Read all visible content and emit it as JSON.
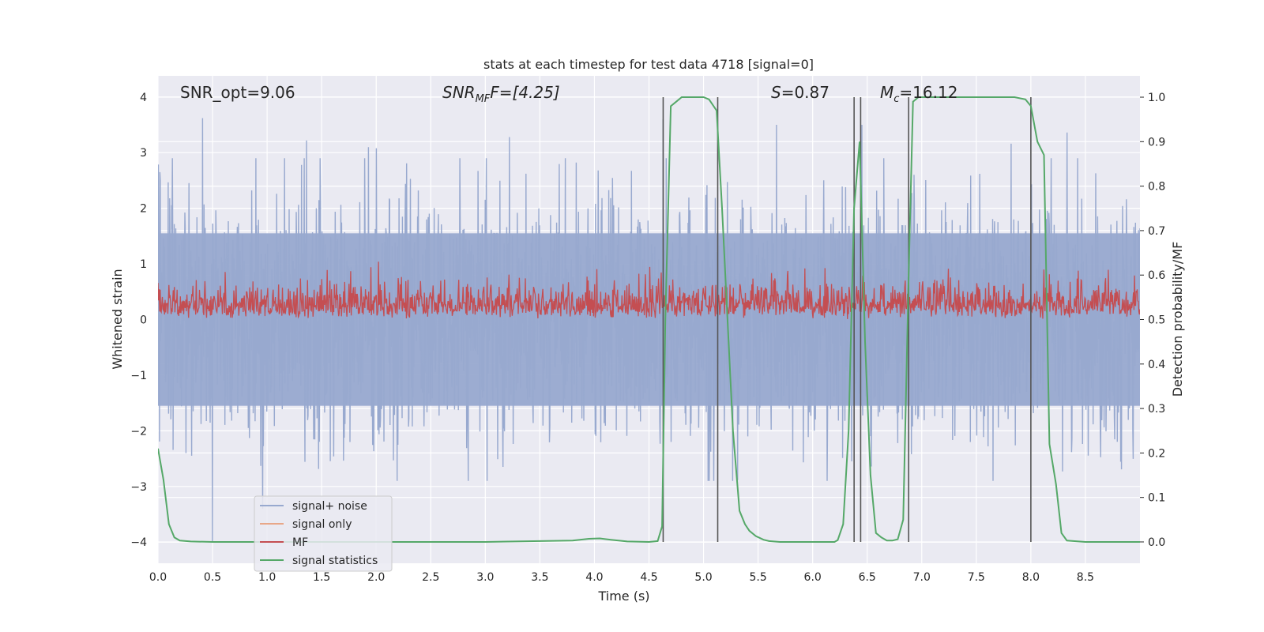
{
  "chart_data": {
    "type": "line",
    "title": "stats at each timestep for test data 4718 [signal=0]",
    "xlabel": "Time (s)",
    "ylabel": "Whitened strain",
    "y2label": "Detection probability/MF",
    "xlim": [
      0.0,
      9.0
    ],
    "ylim": [
      -4.38,
      4.38
    ],
    "y2lim": [
      -0.048,
      1.048
    ],
    "xticks": [
      "0.0",
      "0.5",
      "1.0",
      "1.5",
      "2.0",
      "2.5",
      "3.0",
      "3.5",
      "4.0",
      "4.5",
      "5.0",
      "5.5",
      "6.0",
      "6.5",
      "7.0",
      "7.5",
      "8.0",
      "8.5"
    ],
    "yticks": [
      "−4",
      "−3",
      "−2",
      "−1",
      "0",
      "1",
      "2",
      "3",
      "4"
    ],
    "y2ticks": [
      "0.0",
      "0.1",
      "0.2",
      "0.3",
      "0.4",
      "0.5",
      "0.6",
      "0.7",
      "0.8",
      "0.9",
      "1.0"
    ],
    "annotations": {
      "snr_opt": "SNR_opt=9.06",
      "snr_mf_main": "SNR",
      "snr_mf_sub": "MF",
      "snr_mf_rest": "F=[4.25]",
      "s_sym": "S",
      "s_rest": "=0.87",
      "mc_main": "M",
      "mc_sub": "c",
      "mc_rest": "=16.12"
    },
    "vertical_lines": [
      4.63,
      5.13,
      6.38,
      6.44,
      6.88,
      8.0
    ],
    "series": [
      {
        "name": "signal+ noise",
        "axis": "left",
        "color": "#98a9cf",
        "style": "noise band, amplitude envelope ~ ±1.6 typical, spikes to ±3.6",
        "peaks": [
          [
            0.02,
            2.5
          ],
          [
            0.41,
            3.62
          ],
          [
            0.5,
            -4.0
          ],
          [
            0.96,
            -3.4
          ],
          [
            1.36,
            3.22
          ],
          [
            1.93,
            3.1
          ],
          [
            2.0,
            3.08
          ],
          [
            3.22,
            3.28
          ],
          [
            4.63,
            3.6
          ],
          [
            5.67,
            3.5
          ],
          [
            6.45,
            3.5
          ],
          [
            7.82,
            3.16
          ],
          [
            8.33,
            3.36
          ]
        ]
      },
      {
        "name": "signal only",
        "axis": "left",
        "color": "#e8a788",
        "values": []
      },
      {
        "name": "MF",
        "axis": "right",
        "color": "#c44e52",
        "style": "noisy trace between 0.50 and ~0.62"
      },
      {
        "name": "signal statistics",
        "axis": "right",
        "color": "#55a868",
        "x": [
          0.0,
          0.05,
          0.1,
          0.15,
          0.2,
          0.3,
          0.5,
          1.0,
          2.0,
          3.0,
          3.8,
          3.95,
          4.05,
          4.15,
          4.3,
          4.5,
          4.58,
          4.62,
          4.65,
          4.7,
          4.75,
          4.8,
          4.9,
          5.0,
          5.05,
          5.12,
          5.17,
          5.22,
          5.27,
          5.33,
          5.38,
          5.42,
          5.48,
          5.55,
          5.6,
          5.7,
          6.2,
          6.23,
          6.28,
          6.33,
          6.38,
          6.43,
          6.48,
          6.53,
          6.58,
          6.63,
          6.68,
          6.73,
          6.78,
          6.83,
          6.88,
          6.92,
          6.97,
          7.05,
          7.3,
          7.6,
          7.85,
          7.95,
          8.0,
          8.06,
          8.12,
          8.17,
          8.23,
          8.28,
          8.33,
          8.5,
          9.0
        ],
        "y": [
          0.21,
          0.14,
          0.04,
          0.01,
          0.003,
          0.001,
          0.0,
          0.0,
          0.0,
          0.0,
          0.003,
          0.007,
          0.008,
          0.005,
          0.001,
          0.0,
          0.002,
          0.035,
          0.5,
          0.98,
          0.99,
          1.0,
          1.0,
          1.0,
          0.995,
          0.97,
          0.75,
          0.5,
          0.25,
          0.07,
          0.04,
          0.025,
          0.013,
          0.005,
          0.002,
          0.0,
          0.0,
          0.004,
          0.04,
          0.25,
          0.75,
          0.9,
          0.45,
          0.15,
          0.02,
          0.01,
          0.003,
          0.003,
          0.006,
          0.05,
          0.6,
          0.99,
          1.0,
          1.0,
          1.0,
          1.0,
          1.0,
          0.995,
          0.98,
          0.9,
          0.87,
          0.22,
          0.13,
          0.02,
          0.003,
          0.0,
          0.0
        ]
      }
    ],
    "legend_position": "lower-left"
  }
}
